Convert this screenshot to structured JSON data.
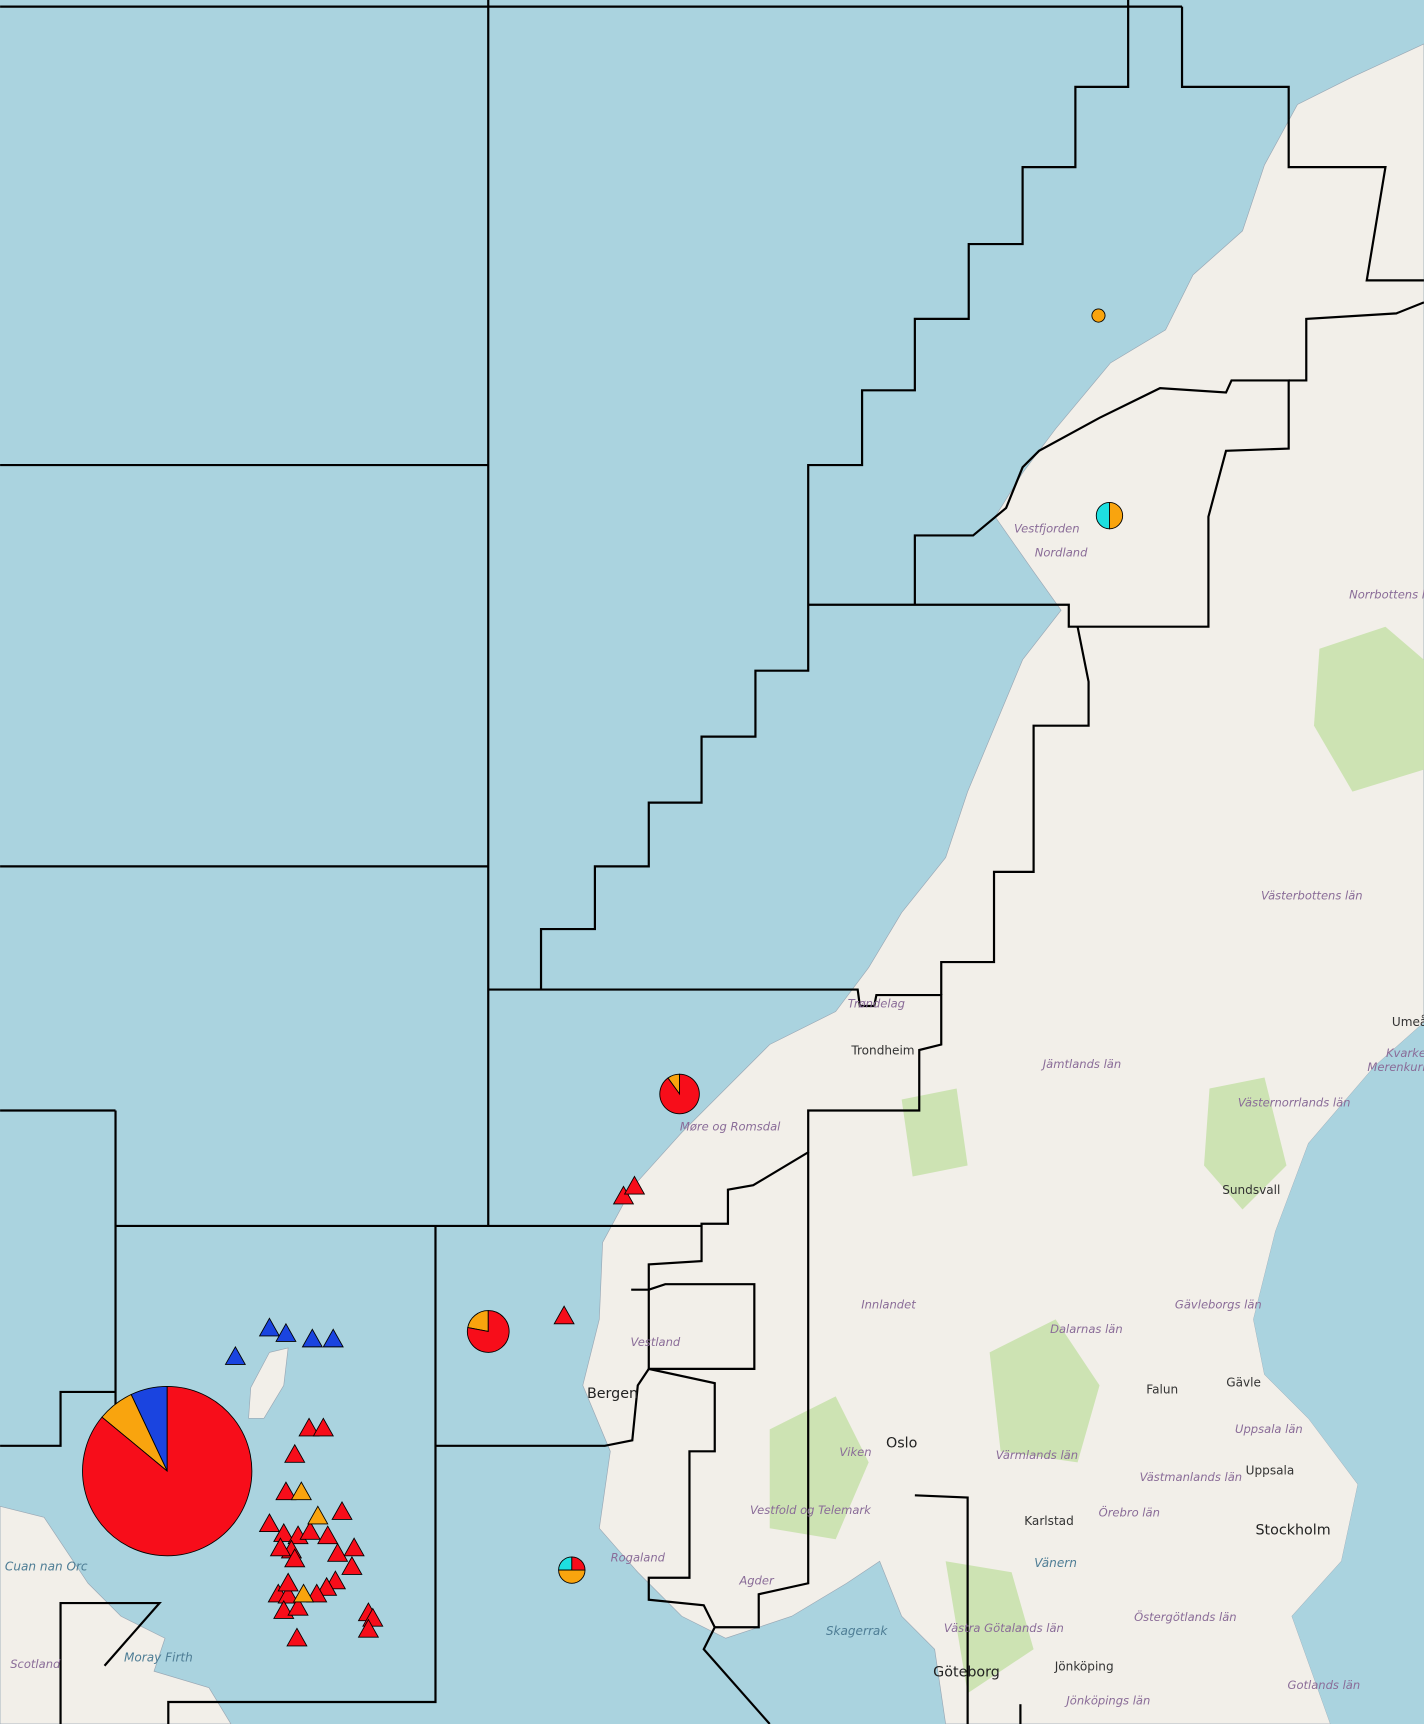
{
  "labels": [
    "Vestfjorden",
    "Nordland",
    "Norrbottens län",
    "Västerbottens län",
    "Trøndelag",
    "Trondheim",
    "Jämtlands län",
    "Umeå",
    "Kvarken",
    "Merenkurkku",
    "Västernorrlands län",
    "Sundsvall",
    "Møre og Romsdal",
    "Innlandet",
    "Dalarnas län",
    "Gävleborgs län",
    "Vestland",
    "Bergen",
    "Falun",
    "Gävle",
    "Uppsala län",
    "Uppsala",
    "Oslo",
    "Viken",
    "Värmlands län",
    "Västmanlands län",
    "Karlstad",
    "Örebro län",
    "Stockholm",
    "Vestfold og Telemark",
    "Rogaland",
    "Vänern",
    "Agder",
    "Skagerrak",
    "Västra Götalands län",
    "Östergötlands län",
    "Jönköping",
    "Jönköpings län",
    "Göteborg",
    "Gotlands län",
    "Scotland",
    "Moray Firth",
    "Cuan nan Orc"
  ],
  "pies": [
    {
      "segments": [
        {
          "color": "#1a44e0",
          "value": 7
        },
        {
          "color": "#f9a40e",
          "value": 7
        },
        {
          "color": "#f70d1a",
          "value": 86
        }
      ]
    },
    {
      "segments": [
        {
          "color": "#f9a40e",
          "value": 10
        },
        {
          "color": "#f70d1a",
          "value": 90
        }
      ]
    },
    {
      "segments": [
        {
          "color": "#f9a40e",
          "value": 22
        },
        {
          "color": "#f70d1a",
          "value": 78
        }
      ]
    },
    {
      "segments": [
        {
          "color": "#1ee0e0",
          "value": 50
        },
        {
          "color": "#f9a40e",
          "value": 50
        }
      ]
    },
    {
      "segments": [
        {
          "color": "#1ee0e0",
          "value": 25
        },
        {
          "color": "#f9a40e",
          "value": 50
        },
        {
          "color": "#f70d1a",
          "value": 25
        }
      ]
    },
    {
      "segments": [
        {
          "color": "#f9a40e",
          "value": 100
        }
      ]
    }
  ]
}
